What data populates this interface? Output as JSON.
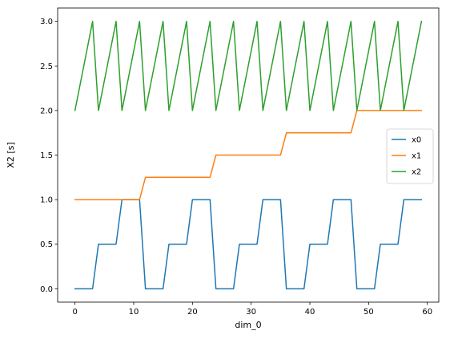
{
  "chart_data": {
    "type": "line",
    "title": "",
    "xlabel": "dim_0",
    "ylabel": "X2 [s]",
    "xlim": [
      -2.95,
      61.95
    ],
    "ylim": [
      -0.15,
      3.15
    ],
    "xticks": [
      0,
      10,
      20,
      30,
      40,
      50,
      60
    ],
    "yticks": [
      0.0,
      0.5,
      1.0,
      1.5,
      2.0,
      2.5,
      3.0
    ],
    "xtick_labels": [
      "0",
      "10",
      "20",
      "30",
      "40",
      "50",
      "60"
    ],
    "ytick_labels": [
      "0.0",
      "0.5",
      "1.0",
      "1.5",
      "2.0",
      "2.5",
      "3.0"
    ],
    "grid": false,
    "legend_position": "center-right",
    "x": [
      0,
      1,
      2,
      3,
      4,
      5,
      6,
      7,
      8,
      9,
      10,
      11,
      12,
      13,
      14,
      15,
      16,
      17,
      18,
      19,
      20,
      21,
      22,
      23,
      24,
      25,
      26,
      27,
      28,
      29,
      30,
      31,
      32,
      33,
      34,
      35,
      36,
      37,
      38,
      39,
      40,
      41,
      42,
      43,
      44,
      45,
      46,
      47,
      48,
      49,
      50,
      51,
      52,
      53,
      54,
      55,
      56,
      57,
      58,
      59
    ],
    "series": [
      {
        "name": "x0",
        "color": "#1f77b4",
        "values": [
          0,
          0,
          0,
          0,
          0.5,
          0.5,
          0.5,
          0.5,
          1,
          1,
          1,
          1,
          0,
          0,
          0,
          0,
          0.5,
          0.5,
          0.5,
          0.5,
          1,
          1,
          1,
          1,
          0,
          0,
          0,
          0,
          0.5,
          0.5,
          0.5,
          0.5,
          1,
          1,
          1,
          1,
          0,
          0,
          0,
          0,
          0.5,
          0.5,
          0.5,
          0.5,
          1,
          1,
          1,
          1,
          0,
          0,
          0,
          0,
          0.5,
          0.5,
          0.5,
          0.5,
          1,
          1,
          1,
          1
        ]
      },
      {
        "name": "x1",
        "color": "#ff7f0e",
        "values": [
          1,
          1,
          1,
          1,
          1,
          1,
          1,
          1,
          1,
          1,
          1,
          1,
          1.25,
          1.25,
          1.25,
          1.25,
          1.25,
          1.25,
          1.25,
          1.25,
          1.25,
          1.25,
          1.25,
          1.25,
          1.5,
          1.5,
          1.5,
          1.5,
          1.5,
          1.5,
          1.5,
          1.5,
          1.5,
          1.5,
          1.5,
          1.5,
          1.75,
          1.75,
          1.75,
          1.75,
          1.75,
          1.75,
          1.75,
          1.75,
          1.75,
          1.75,
          1.75,
          1.75,
          2,
          2,
          2,
          2,
          2,
          2,
          2,
          2,
          2,
          2,
          2,
          2
        ]
      },
      {
        "name": "x2",
        "color": "#2ca02c",
        "values": [
          2,
          2.333,
          2.667,
          3,
          2,
          2.333,
          2.667,
          3,
          2,
          2.333,
          2.667,
          3,
          2,
          2.333,
          2.667,
          3,
          2,
          2.333,
          2.667,
          3,
          2,
          2.333,
          2.667,
          3,
          2,
          2.333,
          2.667,
          3,
          2,
          2.333,
          2.667,
          3,
          2,
          2.333,
          2.667,
          3,
          2,
          2.333,
          2.667,
          3,
          2,
          2.333,
          2.667,
          3,
          2,
          2.333,
          2.667,
          3,
          2,
          2.333,
          2.667,
          3,
          2,
          2.333,
          2.667,
          3,
          2,
          2.333,
          2.667,
          3
        ]
      }
    ]
  }
}
